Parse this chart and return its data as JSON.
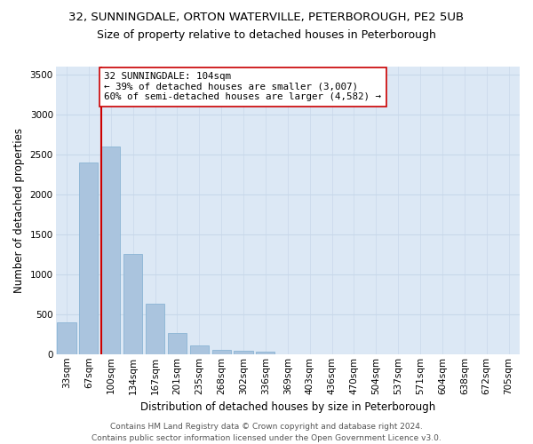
{
  "title1": "32, SUNNINGDALE, ORTON WATERVILLE, PETERBOROUGH, PE2 5UB",
  "title2": "Size of property relative to detached houses in Peterborough",
  "xlabel": "Distribution of detached houses by size in Peterborough",
  "ylabel": "Number of detached properties",
  "footer1": "Contains HM Land Registry data © Crown copyright and database right 2024.",
  "footer2": "Contains public sector information licensed under the Open Government Licence v3.0.",
  "annotation_line1": "32 SUNNINGDALE: 104sqm",
  "annotation_line2": "← 39% of detached houses are smaller (3,007)",
  "annotation_line3": "60% of semi-detached houses are larger (4,582) →",
  "categories": [
    "33sqm",
    "67sqm",
    "100sqm",
    "134sqm",
    "167sqm",
    "201sqm",
    "235sqm",
    "268sqm",
    "302sqm",
    "336sqm",
    "369sqm",
    "403sqm",
    "436sqm",
    "470sqm",
    "504sqm",
    "537sqm",
    "571sqm",
    "604sqm",
    "638sqm",
    "672sqm",
    "705sqm"
  ],
  "bar_values": [
    400,
    2400,
    2600,
    1250,
    630,
    260,
    110,
    55,
    45,
    30,
    0,
    0,
    0,
    0,
    0,
    0,
    0,
    0,
    0,
    0,
    0
  ],
  "bar_color": "#aac4de",
  "bar_edge_color": "#8ab4d4",
  "vline_color": "#cc0000",
  "vline_x_index": 2,
  "annotation_box_edge": "#cc0000",
  "annotation_box_face": "#ffffff",
  "ylim": [
    0,
    3600
  ],
  "yticks": [
    0,
    500,
    1000,
    1500,
    2000,
    2500,
    3000,
    3500
  ],
  "grid_color": "#c8d8ea",
  "plot_bg_color": "#dce8f5",
  "title1_fontsize": 9.5,
  "title2_fontsize": 9,
  "xlabel_fontsize": 8.5,
  "ylabel_fontsize": 8.5,
  "annotation_fontsize": 7.8,
  "tick_fontsize": 7.5,
  "footer_fontsize": 6.5
}
